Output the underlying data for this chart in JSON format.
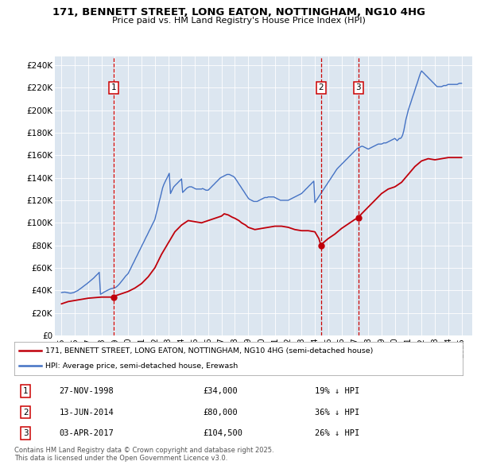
{
  "title": "171, BENNETT STREET, LONG EATON, NOTTINGHAM, NG10 4HG",
  "subtitle": "Price paid vs. HM Land Registry's House Price Index (HPI)",
  "background_color": "#dce6f0",
  "plot_bg_color": "#dce6f0",
  "ylim": [
    0,
    248000
  ],
  "yticks": [
    0,
    20000,
    40000,
    60000,
    80000,
    100000,
    120000,
    140000,
    160000,
    180000,
    200000,
    220000,
    240000
  ],
  "ytick_labels": [
    "£0",
    "£20K",
    "£40K",
    "£60K",
    "£80K",
    "£100K",
    "£120K",
    "£140K",
    "£160K",
    "£180K",
    "£200K",
    "£220K",
    "£240K"
  ],
  "xlim_start": 1994.5,
  "xlim_end": 2025.8,
  "hpi_color": "#4472c4",
  "price_color": "#c0000b",
  "sale_line_color": "#cc0000",
  "sales": [
    {
      "year": 1998.91,
      "price": 34000,
      "label": "1",
      "date": "27-NOV-1998",
      "amount": "£34,000",
      "note": "19% ↓ HPI"
    },
    {
      "year": 2014.45,
      "price": 80000,
      "label": "2",
      "date": "13-JUN-2014",
      "amount": "£80,000",
      "note": "36% ↓ HPI"
    },
    {
      "year": 2017.25,
      "price": 104500,
      "label": "3",
      "date": "03-APR-2017",
      "amount": "£104,500",
      "note": "26% ↓ HPI"
    }
  ],
  "legend_house": "171, BENNETT STREET, LONG EATON, NOTTINGHAM, NG10 4HG (semi-detached house)",
  "legend_hpi": "HPI: Average price, semi-detached house, Erewash",
  "footer": "Contains HM Land Registry data © Crown copyright and database right 2025.\nThis data is licensed under the Open Government Licence v3.0.",
  "hpi_years": [
    1995.0,
    1995.08,
    1995.17,
    1995.25,
    1995.33,
    1995.42,
    1995.5,
    1995.58,
    1995.67,
    1995.75,
    1995.83,
    1995.92,
    1996.0,
    1996.08,
    1996.17,
    1996.25,
    1996.33,
    1996.42,
    1996.5,
    1996.58,
    1996.67,
    1996.75,
    1996.83,
    1996.92,
    1997.0,
    1997.08,
    1997.17,
    1997.25,
    1997.33,
    1997.42,
    1997.5,
    1997.58,
    1997.67,
    1997.75,
    1997.83,
    1997.92,
    1998.0,
    1998.08,
    1998.17,
    1998.25,
    1998.33,
    1998.42,
    1998.5,
    1998.58,
    1998.67,
    1998.75,
    1998.83,
    1998.92,
    1999.0,
    1999.08,
    1999.17,
    1999.25,
    1999.33,
    1999.42,
    1999.5,
    1999.58,
    1999.67,
    1999.75,
    1999.83,
    1999.92,
    2000.0,
    2000.08,
    2000.17,
    2000.25,
    2000.33,
    2000.42,
    2000.5,
    2000.58,
    2000.67,
    2000.75,
    2000.83,
    2000.92,
    2001.0,
    2001.08,
    2001.17,
    2001.25,
    2001.33,
    2001.42,
    2001.5,
    2001.58,
    2001.67,
    2001.75,
    2001.83,
    2001.92,
    2002.0,
    2002.08,
    2002.17,
    2002.25,
    2002.33,
    2002.42,
    2002.5,
    2002.58,
    2002.67,
    2002.75,
    2002.83,
    2002.92,
    2003.0,
    2003.08,
    2003.17,
    2003.25,
    2003.33,
    2003.42,
    2003.5,
    2003.58,
    2003.67,
    2003.75,
    2003.83,
    2003.92,
    2004.0,
    2004.08,
    2004.17,
    2004.25,
    2004.33,
    2004.42,
    2004.5,
    2004.58,
    2004.67,
    2004.75,
    2004.83,
    2004.92,
    2005.0,
    2005.08,
    2005.17,
    2005.25,
    2005.33,
    2005.42,
    2005.5,
    2005.58,
    2005.67,
    2005.75,
    2005.83,
    2005.92,
    2006.0,
    2006.08,
    2006.17,
    2006.25,
    2006.33,
    2006.42,
    2006.5,
    2006.58,
    2006.67,
    2006.75,
    2006.83,
    2006.92,
    2007.0,
    2007.08,
    2007.17,
    2007.25,
    2007.33,
    2007.42,
    2007.5,
    2007.58,
    2007.67,
    2007.75,
    2007.83,
    2007.92,
    2008.0,
    2008.08,
    2008.17,
    2008.25,
    2008.33,
    2008.42,
    2008.5,
    2008.58,
    2008.67,
    2008.75,
    2008.83,
    2008.92,
    2009.0,
    2009.08,
    2009.17,
    2009.25,
    2009.33,
    2009.42,
    2009.5,
    2009.58,
    2009.67,
    2009.75,
    2009.83,
    2009.92,
    2010.0,
    2010.08,
    2010.17,
    2010.25,
    2010.33,
    2010.42,
    2010.5,
    2010.58,
    2010.67,
    2010.75,
    2010.83,
    2010.92,
    2011.0,
    2011.08,
    2011.17,
    2011.25,
    2011.33,
    2011.42,
    2011.5,
    2011.58,
    2011.67,
    2011.75,
    2011.83,
    2011.92,
    2012.0,
    2012.08,
    2012.17,
    2012.25,
    2012.33,
    2012.42,
    2012.5,
    2012.58,
    2012.67,
    2012.75,
    2012.83,
    2012.92,
    2013.0,
    2013.08,
    2013.17,
    2013.25,
    2013.33,
    2013.42,
    2013.5,
    2013.58,
    2013.67,
    2013.75,
    2013.83,
    2013.92,
    2014.0,
    2014.08,
    2014.17,
    2014.25,
    2014.33,
    2014.42,
    2014.5,
    2014.58,
    2014.67,
    2014.75,
    2014.83,
    2014.92,
    2015.0,
    2015.08,
    2015.17,
    2015.25,
    2015.33,
    2015.42,
    2015.5,
    2015.58,
    2015.67,
    2015.75,
    2015.83,
    2015.92,
    2016.0,
    2016.08,
    2016.17,
    2016.25,
    2016.33,
    2016.42,
    2016.5,
    2016.58,
    2016.67,
    2016.75,
    2016.83,
    2016.92,
    2017.0,
    2017.08,
    2017.17,
    2017.25,
    2017.33,
    2017.42,
    2017.5,
    2017.58,
    2017.67,
    2017.75,
    2017.83,
    2017.92,
    2018.0,
    2018.08,
    2018.17,
    2018.25,
    2018.33,
    2018.42,
    2018.5,
    2018.58,
    2018.67,
    2018.75,
    2018.83,
    2018.92,
    2019.0,
    2019.08,
    2019.17,
    2019.25,
    2019.33,
    2019.42,
    2019.5,
    2019.58,
    2019.67,
    2019.75,
    2019.83,
    2019.92,
    2020.0,
    2020.08,
    2020.17,
    2020.25,
    2020.33,
    2020.42,
    2020.5,
    2020.58,
    2020.67,
    2020.75,
    2020.83,
    2020.92,
    2021.0,
    2021.08,
    2021.17,
    2021.25,
    2021.33,
    2021.42,
    2021.5,
    2021.58,
    2021.67,
    2021.75,
    2021.83,
    2021.92,
    2022.0,
    2022.08,
    2022.17,
    2022.25,
    2022.33,
    2022.42,
    2022.5,
    2022.58,
    2022.67,
    2022.75,
    2022.83,
    2022.92,
    2023.0,
    2023.08,
    2023.17,
    2023.25,
    2023.33,
    2023.42,
    2023.5,
    2023.58,
    2023.67,
    2023.75,
    2023.83,
    2023.92,
    2024.0,
    2024.08,
    2024.17,
    2024.25,
    2024.33,
    2024.42,
    2024.5,
    2024.58,
    2024.67,
    2024.75,
    2024.83,
    2024.92,
    2025.0
  ],
  "hpi_values": [
    38000,
    38200,
    38300,
    38400,
    38200,
    38000,
    37800,
    37600,
    37500,
    37600,
    37800,
    38000,
    38500,
    39000,
    39500,
    40000,
    40800,
    41500,
    42200,
    43000,
    43800,
    44500,
    45200,
    46000,
    46800,
    47600,
    48500,
    49300,
    50200,
    51000,
    52000,
    53000,
    54000,
    55000,
    56000,
    36500,
    37000,
    37600,
    38200,
    38800,
    39300,
    39800,
    40300,
    40800,
    41300,
    41600,
    41800,
    42000,
    42200,
    42800,
    43600,
    44500,
    45500,
    46800,
    48000,
    49200,
    50500,
    51800,
    53000,
    54000,
    55000,
    57000,
    59000,
    61000,
    63000,
    65000,
    67000,
    69000,
    71000,
    73000,
    75000,
    77000,
    79000,
    81000,
    83000,
    85000,
    87000,
    89000,
    91000,
    93000,
    95000,
    97000,
    99000,
    101000,
    103000,
    107000,
    111000,
    115000,
    119000,
    123000,
    127000,
    131000,
    134000,
    136000,
    138000,
    140000,
    142000,
    144000,
    126000,
    128000,
    130000,
    132000,
    133000,
    134000,
    135000,
    136000,
    137000,
    138000,
    139000,
    127000,
    128000,
    129000,
    130000,
    131000,
    131500,
    132000,
    132000,
    132000,
    131500,
    131000,
    130500,
    130000,
    130000,
    130000,
    130000,
    130000,
    130000,
    130500,
    130000,
    129500,
    129000,
    129000,
    129000,
    130000,
    131000,
    132000,
    133000,
    134000,
    135000,
    136000,
    137000,
    138000,
    139000,
    140000,
    140500,
    141000,
    141500,
    142000,
    142500,
    143000,
    143000,
    143000,
    142500,
    142000,
    141500,
    141000,
    140000,
    138500,
    137000,
    135500,
    134000,
    132500,
    131000,
    129500,
    128000,
    126500,
    125000,
    123500,
    122000,
    121000,
    120500,
    120000,
    119500,
    119000,
    119000,
    119000,
    119000,
    119500,
    120000,
    120500,
    121000,
    121500,
    122000,
    122500,
    122500,
    122500,
    123000,
    123000,
    123000,
    123000,
    123000,
    123000,
    122500,
    122000,
    121500,
    121000,
    120500,
    120000,
    120000,
    120000,
    120000,
    120000,
    120000,
    120000,
    120000,
    120500,
    121000,
    121500,
    122000,
    122500,
    123000,
    123500,
    124000,
    124500,
    125000,
    125500,
    126000,
    127000,
    128000,
    129000,
    130000,
    131000,
    132000,
    133000,
    134000,
    135000,
    136000,
    137000,
    118000,
    119500,
    121000,
    122500,
    124000,
    125500,
    127000,
    128500,
    130000,
    131500,
    133000,
    134500,
    136000,
    137500,
    139000,
    140500,
    142000,
    143500,
    145000,
    146500,
    148000,
    149000,
    150000,
    151000,
    152000,
    153000,
    154000,
    155000,
    156000,
    157000,
    158000,
    159000,
    160000,
    161000,
    162000,
    163000,
    164000,
    165000,
    166000,
    166500,
    167000,
    167500,
    168000,
    168000,
    167500,
    167000,
    166500,
    166000,
    165500,
    166000,
    166500,
    167000,
    167500,
    168000,
    168500,
    169000,
    169500,
    170000,
    170000,
    170000,
    170000,
    170500,
    171000,
    171000,
    171000,
    171500,
    172000,
    172500,
    173000,
    173500,
    174000,
    174500,
    175000,
    174000,
    173000,
    174000,
    175000,
    175000,
    176000,
    178000,
    182000,
    187000,
    192000,
    196000,
    200000,
    203000,
    206000,
    209000,
    212000,
    215000,
    218000,
    221000,
    224000,
    227000,
    230000,
    233000,
    235000,
    234000,
    233000,
    232000,
    231000,
    230000,
    229000,
    228000,
    227000,
    226000,
    225000,
    224000,
    223000,
    222000,
    221000,
    221000,
    221000,
    221000,
    221000,
    221500,
    222000,
    222000,
    222000,
    222500,
    223000,
    223000,
    223000,
    223000,
    223000,
    223000,
    223000,
    223000,
    223000,
    223500,
    224000,
    224000,
    224000
  ],
  "price_years": [
    1995.0,
    1995.5,
    1996.0,
    1996.5,
    1997.0,
    1997.5,
    1998.0,
    1998.5,
    1998.91,
    1999.0,
    1999.5,
    2000.0,
    2000.5,
    2001.0,
    2001.5,
    2002.0,
    2002.5,
    2003.0,
    2003.5,
    2004.0,
    2004.5,
    2005.0,
    2005.5,
    2006.0,
    2006.5,
    2007.0,
    2007.2,
    2007.5,
    2007.8,
    2008.0,
    2008.3,
    2008.5,
    2008.8,
    2009.0,
    2009.5,
    2010.0,
    2010.5,
    2011.0,
    2011.5,
    2012.0,
    2012.5,
    2013.0,
    2013.5,
    2014.0,
    2014.3,
    2014.45,
    2014.6,
    2015.0,
    2015.5,
    2016.0,
    2016.5,
    2017.0,
    2017.25,
    2017.5,
    2018.0,
    2018.5,
    2019.0,
    2019.5,
    2020.0,
    2020.5,
    2021.0,
    2021.5,
    2022.0,
    2022.5,
    2023.0,
    2023.5,
    2024.0,
    2024.3,
    2024.6,
    2025.0
  ],
  "price_values": [
    28000,
    30000,
    31000,
    32000,
    33000,
    33500,
    34000,
    34000,
    34000,
    35000,
    37000,
    39000,
    42000,
    46000,
    52000,
    60000,
    72000,
    82000,
    92000,
    98000,
    102000,
    101000,
    100000,
    102000,
    104000,
    106000,
    108000,
    107000,
    105000,
    104000,
    102000,
    100000,
    98000,
    96000,
    94000,
    95000,
    96000,
    97000,
    97000,
    96000,
    94000,
    93000,
    93000,
    92000,
    86000,
    80000,
    82000,
    86000,
    90000,
    95000,
    99000,
    103000,
    104500,
    108000,
    114000,
    120000,
    126000,
    130000,
    132000,
    136000,
    143000,
    150000,
    155000,
    157000,
    156000,
    157000,
    158000,
    158000,
    158000,
    158000
  ]
}
